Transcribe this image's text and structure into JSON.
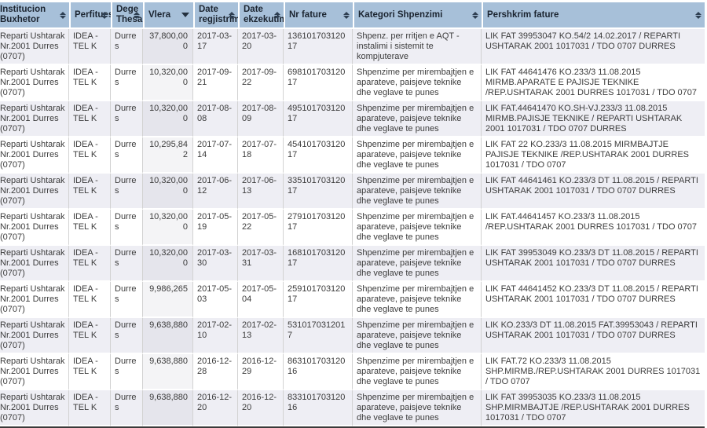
{
  "colors": {
    "header_bg": "#a7c0d9",
    "header_text": "#1b2430",
    "row_odd": "#eeeef4",
    "row_even": "#ffffff",
    "sorted_col_odd": "#e5e5ec",
    "sorted_col_even": "#f4f4f6",
    "table_bottom_border": "#3a3a3a"
  },
  "table": {
    "sorted_column": "Vlera",
    "sort_direction": "descending",
    "columns": [
      {
        "key": "institucion",
        "label": "Institucion Buxhetor",
        "sort": "both"
      },
      {
        "key": "perfitues",
        "label": "Perfitues",
        "sort": "both"
      },
      {
        "key": "dege_thesari",
        "label": "Dege Thesari",
        "sort": "both"
      },
      {
        "key": "vlera",
        "label": "Vlera",
        "sort": "desc"
      },
      {
        "key": "date_regjistrimi",
        "label": "Date regjistrimi",
        "sort": "both"
      },
      {
        "key": "date_ekzekutimi",
        "label": "Date ekzekutimi",
        "sort": "both"
      },
      {
        "key": "nr_fature",
        "label": "Nr fature",
        "sort": "both"
      },
      {
        "key": "kategori",
        "label": "Kategori Shpenzimi",
        "sort": "both"
      },
      {
        "key": "pershkrim",
        "label": "Pershkrim fature",
        "sort": "both"
      }
    ],
    "rows": [
      {
        "institucion": "Reparti Ushtarak Nr.2001 Durres (0707)",
        "perfitues": "IDEA - TEL K",
        "dege_thesari": "Durres",
        "vlera": "37,800,000",
        "date_regjistrimi": "2017-03-17",
        "date_ekzekutimi": "2017-03-20",
        "nr_fature": "13610170312017",
        "kategori": "Shpenz. per rritjen e AQT - instalimi i sistemit te kompjuterave",
        "pershkrim": "LIK FAT 39953047 KO.54/2 14.02.2017 / REPARTI USHTARAK 2001 1017031 / TDO 0707 DURRES"
      },
      {
        "institucion": "Reparti Ushtarak Nr.2001 Durres (0707)",
        "perfitues": "IDEA - TEL K",
        "dege_thesari": "Durres",
        "vlera": "10,320,000",
        "date_regjistrimi": "2017-09-21",
        "date_ekzekutimi": "2017-09-22",
        "nr_fature": "69810170312017",
        "kategori": "Shpenzime per mirembajtjen e aparateve, paisjeve teknike dhe veglave te punes",
        "pershkrim": "LIK FAT 44641476 KO.233/3 11.08.2015 MIRMB.APARATE E PAJISJE TEKNIKE /REP.USHTARAK 2001 DURRES 1017031 / TDO 0707"
      },
      {
        "institucion": "Reparti Ushtarak Nr.2001 Durres (0707)",
        "perfitues": "IDEA - TEL K",
        "dege_thesari": "Durres",
        "vlera": "10,320,000",
        "date_regjistrimi": "2017-08-08",
        "date_ekzekutimi": "2017-08-09",
        "nr_fature": "49510170312017",
        "kategori": "Shpenzime per mirembajtjen e aparateve, paisjeve teknike dhe veglave te punes",
        "pershkrim": "LIK FAT.44641470 KO.SH-VJ.233/3 11.08.2015 MIRMB.PAJISJE TEKNIKE / REPARTI USHTARAK 2001 1017031 / TDO 0707 DURRES"
      },
      {
        "institucion": "Reparti Ushtarak Nr.2001 Durres (0707)",
        "perfitues": "IDEA - TEL K",
        "dege_thesari": "Durres",
        "vlera": "10,295,842",
        "date_regjistrimi": "2017-07-14",
        "date_ekzekutimi": "2017-07-18",
        "nr_fature": "45410170312017",
        "kategori": "Shpenzime per mirembajtjen e aparateve, paisjeve teknike dhe veglave te punes",
        "pershkrim": "LIK FAT 22 KO.233/3 11.08.2015 MIRMBAJTJE PAJISJE TEKNIKE /REP.USHTARAK 2001 DURRES 1017031 / TDO 0707"
      },
      {
        "institucion": "Reparti Ushtarak Nr.2001 Durres (0707)",
        "perfitues": "IDEA - TEL K",
        "dege_thesari": "Durres",
        "vlera": "10,320,000",
        "date_regjistrimi": "2017-06-12",
        "date_ekzekutimi": "2017-06-13",
        "nr_fature": "33510170312017",
        "kategori": "Shpenzime per mirembajtjen e aparateve, paisjeve teknike dhe veglave te punes",
        "pershkrim": "LIK FAT 44641461 KO.233/3 DT 11.08.2015 / REPARTI USHTARAK 2001 1017031 / TDO 0707 DURRES"
      },
      {
        "institucion": "Reparti Ushtarak Nr.2001 Durres (0707)",
        "perfitues": "IDEA - TEL K",
        "dege_thesari": "Durres",
        "vlera": "10,320,000",
        "date_regjistrimi": "2017-05-19",
        "date_ekzekutimi": "2017-05-22",
        "nr_fature": "27910170312017",
        "kategori": "Shpenzime per mirembajtjen e aparateve, paisjeve teknike dhe veglave te punes",
        "pershkrim": "LIK FAT.44641457 KO.233/3 11.08.2015 /REP.USHTARAK 2001 DURRES 1017031 / TDO 0707"
      },
      {
        "institucion": "Reparti Ushtarak Nr.2001 Durres (0707)",
        "perfitues": "IDEA - TEL K",
        "dege_thesari": "Durres",
        "vlera": "10,320,000",
        "date_regjistrimi": "2017-03-30",
        "date_ekzekutimi": "2017-03-31",
        "nr_fature": "16810170312017",
        "kategori": "Shpenzime per mirembajtjen e aparateve, paisjeve teknike dhe veglave te punes",
        "pershkrim": "LIK FAT 39953049 KO.233/3 DT 11.08.2015 / REPARTI USHTARAK 2001 1017031 / TDO 0707 DURRES"
      },
      {
        "institucion": "Reparti Ushtarak Nr.2001 Durres (0707)",
        "perfitues": "IDEA - TEL K",
        "dege_thesari": "Durres",
        "vlera": "9,986,265",
        "date_regjistrimi": "2017-05-03",
        "date_ekzekutimi": "2017-05-04",
        "nr_fature": "25910170312017",
        "kategori": "Shpenzime per mirembajtjen e aparateve, paisjeve teknike dhe veglave te punes",
        "pershkrim": "LIK FAT 44641452 KO.233/3 DT 11.08.2015 / REPARTI USHTARAK 2001 1017031 / TDO 0707 DURRES"
      },
      {
        "institucion": "Reparti Ushtarak Nr.2001 Durres (0707)",
        "perfitues": "IDEA - TEL K",
        "dege_thesari": "Durres",
        "vlera": "9,638,880",
        "date_regjistrimi": "2017-02-10",
        "date_ekzekutimi": "2017-02-13",
        "nr_fature": "5310170312017",
        "kategori": "Shpenzime per mirembajtjen e aparateve, paisjeve teknike dhe veglave te punes",
        "pershkrim": "LIK KO.233/3 DT 11.08.2015 FAT.39953043 / REPARTI USHTARAK 2001 1017031 / TDO 0707 DURRES"
      },
      {
        "institucion": "Reparti Ushtarak Nr.2001 Durres (0707)",
        "perfitues": "IDEA - TEL K",
        "dege_thesari": "Durres",
        "vlera": "9,638,880",
        "date_regjistrimi": "2016-12-28",
        "date_ekzekutimi": "2016-12-29",
        "nr_fature": "86310170312016",
        "kategori": "Shpenzime per mirembajtjen e aparateve, paisjeve teknike dhe veglave te punes",
        "pershkrim": "LIK FAT.72 KO.233/3 11.08.2015 SHP.MIRMB./REP.USHTARAK 2001 DURRES 1017031 / TDO 0707"
      },
      {
        "institucion": "Reparti Ushtarak Nr.2001 Durres (0707)",
        "perfitues": "IDEA - TEL K",
        "dege_thesari": "Durres",
        "vlera": "9,638,880",
        "date_regjistrimi": "2016-12-20",
        "date_ekzekutimi": "2016-12-20",
        "nr_fature": "83310170312016",
        "kategori": "Shpenzime per mirembajtjen e aparateve, paisjeve teknike dhe veglave te punes",
        "pershkrim": "LIK FAT 39953035 KO.233/3 11.08.2015 SHP.MIRMBAJTJE /REP.USHTARAK 2001 DURRES 1017031 / TDO 0707"
      }
    ]
  }
}
